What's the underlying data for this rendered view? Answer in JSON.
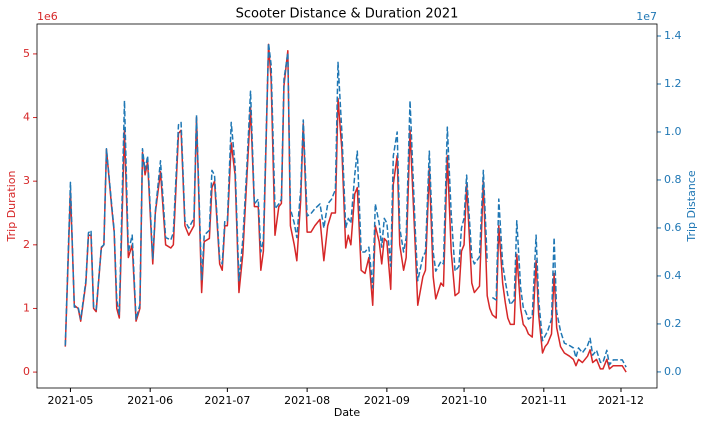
{
  "chart_data": {
    "type": "line",
    "title": "Scooter Distance & Duration 2021",
    "xlabel": "Date",
    "y_offset_label": "1e6",
    "y2_offset_label": "1e7",
    "x": [
      119,
      121,
      122.5,
      124,
      125,
      127,
      128,
      129,
      130,
      131,
      133,
      134,
      135,
      137,
      138,
      139,
      140,
      142,
      143.5,
      145,
      146.5,
      148,
      149,
      150,
      151,
      153,
      154,
      156,
      158,
      160,
      161,
      163,
      164,
      165.5,
      167,
      169,
      170,
      172,
      173,
      175,
      176,
      177,
      179,
      180,
      181,
      182,
      183.5,
      185,
      186.5,
      188,
      189.5,
      191,
      192.5,
      194,
      195,
      196,
      198,
      199,
      200.5,
      202,
      203,
      204,
      205.5,
      206.5,
      208,
      209,
      210.5,
      211.5,
      213,
      214.5,
      216,
      218,
      219.5,
      221,
      222.5,
      224,
      225,
      226.5,
      228,
      229,
      230,
      231.5,
      232.5,
      234,
      235.5,
      237,
      238.5,
      239.5,
      241,
      242,
      243,
      244,
      245.5,
      246.5,
      248,
      249,
      250.5,
      251.5,
      253,
      255,
      256,
      258,
      259,
      260.5,
      262,
      263,
      265,
      266,
      267.5,
      269,
      270.5,
      272,
      273,
      274,
      275,
      277,
      278,
      280,
      281.5,
      283,
      284,
      285,
      286.5,
      287.5,
      289,
      290,
      291,
      292,
      293.5,
      294.5,
      296,
      297,
      298,
      299,
      300.5,
      302,
      303,
      304.5,
      305.5,
      306.5,
      308,
      309,
      310,
      311.5,
      313,
      315,
      316.5,
      317.5,
      318.5,
      320,
      322,
      323,
      324,
      325.5,
      327,
      328,
      329.5,
      330.5,
      332,
      334,
      335.5,
      337
    ],
    "series": [
      {
        "name": "Trip Duration",
        "color": "#d62728",
        "dash": "solid",
        "values": [
          0.4,
          2.85,
          1.05,
          1.0,
          0.8,
          1.4,
          2.15,
          2.15,
          1.0,
          0.95,
          1.95,
          2.0,
          3.5,
          2.6,
          2.2,
          1.0,
          0.85,
          3.8,
          1.8,
          2.0,
          0.8,
          1.0,
          3.45,
          3.1,
          3.3,
          1.7,
          2.5,
          3.15,
          2.0,
          1.95,
          2.0,
          3.75,
          3.8,
          2.3,
          2.15,
          2.3,
          4.0,
          1.25,
          2.05,
          2.1,
          2.9,
          3.0,
          1.7,
          1.6,
          2.3,
          2.3,
          3.6,
          3.1,
          1.25,
          1.85,
          3.0,
          4.15,
          2.6,
          2.6,
          1.6,
          1.9,
          5.15,
          4.6,
          2.15,
          2.6,
          2.65,
          4.5,
          5.05,
          2.3,
          2.0,
          1.75,
          2.7,
          3.9,
          2.2,
          2.2,
          2.3,
          2.4,
          1.75,
          2.3,
          2.5,
          2.5,
          4.3,
          3.5,
          1.95,
          2.15,
          2.0,
          2.8,
          2.9,
          1.6,
          1.55,
          1.8,
          1.05,
          2.3,
          2.05,
          1.7,
          2.1,
          2.05,
          1.3,
          2.95,
          3.4,
          2.0,
          1.6,
          1.8,
          3.8,
          2.0,
          1.05,
          1.5,
          1.6,
          3.2,
          1.5,
          1.15,
          1.4,
          1.35,
          3.4,
          1.9,
          1.2,
          1.25,
          1.9,
          2.0,
          2.95,
          1.4,
          1.25,
          1.35,
          3.0,
          1.2,
          1.0,
          0.9,
          0.85,
          2.3,
          1.4,
          1.1,
          0.85,
          0.75,
          0.75,
          1.85,
          1.0,
          0.75,
          0.7,
          0.6,
          0.55,
          1.75,
          0.9,
          0.3,
          0.4,
          0.45,
          0.6,
          1.55,
          0.7,
          0.4,
          0.3,
          0.25,
          0.2,
          0.1,
          0.2,
          0.15,
          0.25,
          0.35,
          0.15,
          0.2,
          0.05,
          0.05,
          0.2,
          0.05,
          0.1,
          0.1,
          0.1,
          0.0
        ]
      },
      {
        "name": "Trip Distance",
        "color": "#1f77b4",
        "dash": "dashed",
        "axis": "y2",
        "values": [
          0.11,
          0.79,
          0.27,
          0.27,
          0.22,
          0.38,
          0.58,
          0.59,
          0.27,
          0.26,
          0.52,
          0.53,
          0.93,
          0.7,
          0.59,
          0.3,
          0.24,
          1.13,
          0.5,
          0.57,
          0.22,
          0.28,
          0.93,
          0.84,
          0.9,
          0.47,
          0.67,
          0.88,
          0.56,
          0.55,
          0.58,
          1.03,
          1.04,
          0.63,
          0.6,
          0.64,
          1.07,
          0.38,
          0.57,
          0.59,
          0.84,
          0.82,
          0.47,
          0.45,
          0.63,
          0.63,
          1.04,
          0.86,
          0.38,
          0.55,
          0.84,
          1.17,
          0.7,
          0.72,
          0.5,
          0.55,
          1.37,
          1.28,
          0.68,
          0.7,
          0.72,
          1.22,
          1.33,
          0.68,
          0.62,
          0.56,
          0.76,
          1.05,
          0.65,
          0.66,
          0.68,
          0.7,
          0.6,
          0.7,
          0.72,
          0.76,
          1.29,
          1.0,
          0.6,
          0.64,
          0.62,
          0.82,
          0.92,
          0.5,
          0.5,
          0.52,
          0.35,
          0.7,
          0.62,
          0.52,
          0.64,
          0.62,
          0.44,
          0.9,
          1.0,
          0.6,
          0.5,
          0.56,
          1.13,
          0.6,
          0.38,
          0.48,
          0.5,
          0.92,
          0.5,
          0.42,
          0.46,
          0.45,
          1.02,
          0.66,
          0.42,
          0.44,
          0.6,
          0.64,
          0.82,
          0.48,
          0.45,
          0.48,
          0.84,
          0.46,
          null,
          0.31,
          0.3,
          0.72,
          0.45,
          0.38,
          0.32,
          0.28,
          0.3,
          0.63,
          0.35,
          0.27,
          0.25,
          0.22,
          0.23,
          0.57,
          0.3,
          0.13,
          0.15,
          0.17,
          0.22,
          0.56,
          0.25,
          0.17,
          0.12,
          0.11,
          0.1,
          0.06,
          0.1,
          0.08,
          0.11,
          0.14,
          0.07,
          0.09,
          0.04,
          0.04,
          0.09,
          0.03,
          0.05,
          0.05,
          0.05,
          0.02
        ]
      }
    ],
    "xlim": [
      108,
      349
    ],
    "xticks": [
      {
        "value": 121,
        "label": "2021-05"
      },
      {
        "value": 152,
        "label": "2021-06"
      },
      {
        "value": 182,
        "label": "2021-07"
      },
      {
        "value": 213,
        "label": "2021-08"
      },
      {
        "value": 244,
        "label": "2021-09"
      },
      {
        "value": 274,
        "label": "2021-10"
      },
      {
        "value": 305,
        "label": "2021-11"
      },
      {
        "value": 335,
        "label": "2021-12"
      }
    ],
    "ylim": [
      -0.25,
      5.47
    ],
    "yticks": [
      0,
      1,
      2,
      3,
      4,
      5
    ],
    "y2lim": [
      -0.067,
      1.45
    ],
    "y2ticks": [
      {
        "value": 0,
        "label": "0.0"
      },
      0.2,
      0.4,
      0.6,
      0.8,
      {
        "value": 1,
        "label": "1.0"
      },
      1.2,
      1.4
    ],
    "grid": false
  }
}
